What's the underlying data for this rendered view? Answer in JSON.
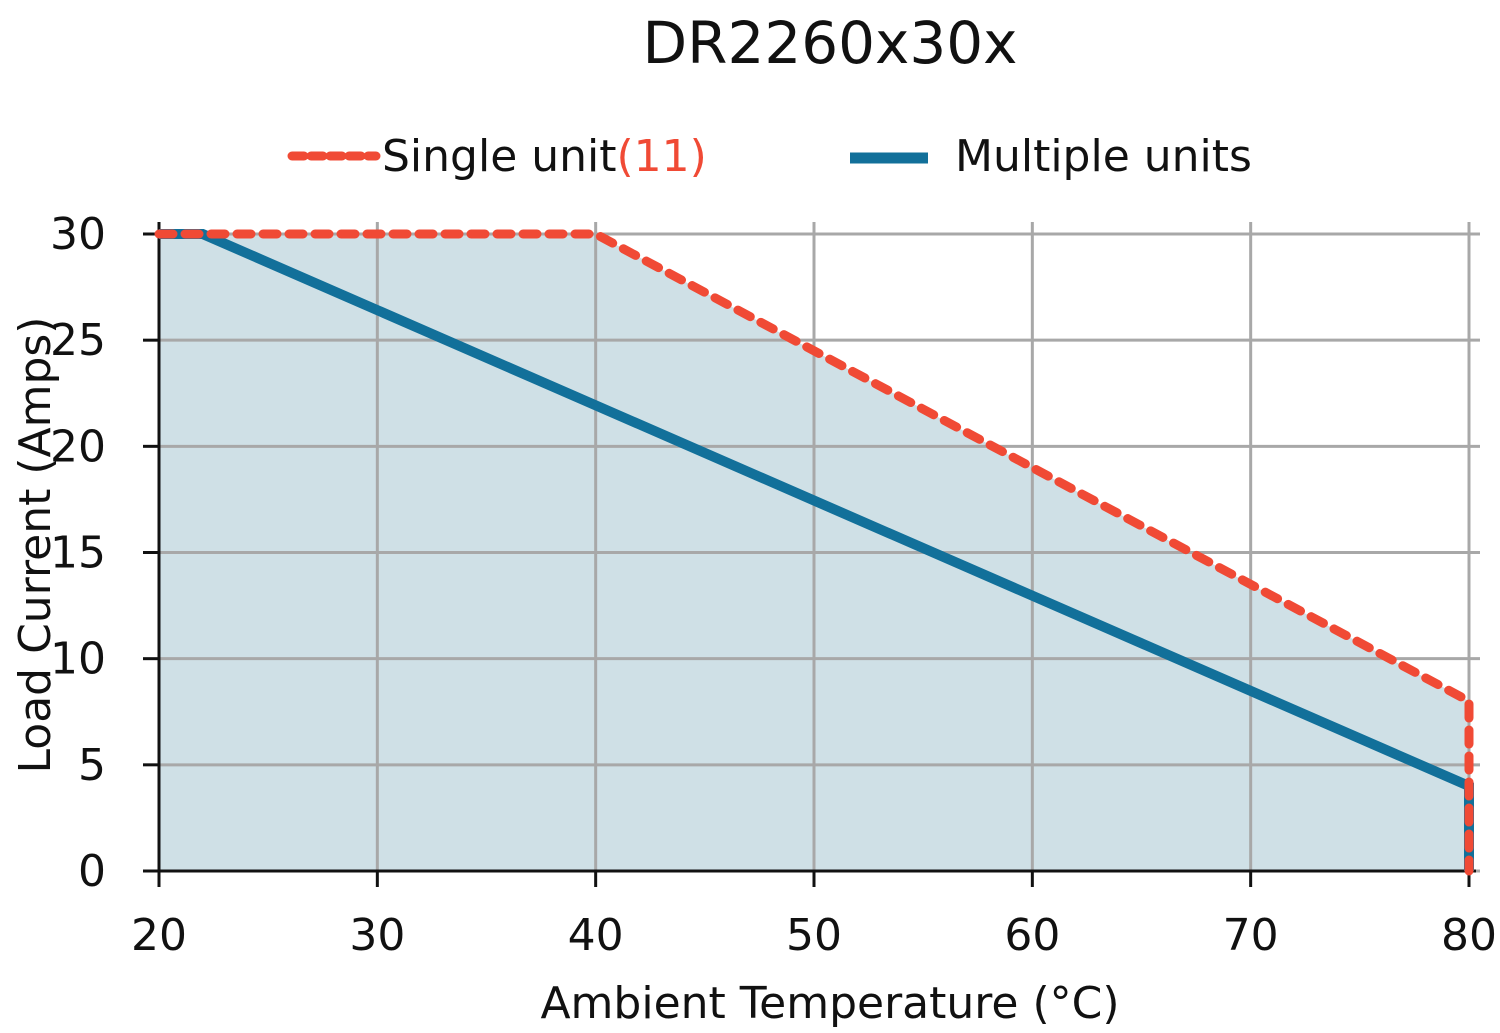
{
  "chart_data": {
    "type": "line",
    "title": "DR2260x30x",
    "xlabel": "Ambient Temperature (°C)",
    "ylabel": "Load Current (Amps)",
    "xlim": [
      20,
      80
    ],
    "ylim": [
      0,
      30
    ],
    "xticks": [
      20,
      30,
      40,
      50,
      60,
      70,
      80
    ],
    "yticks": [
      0,
      5,
      10,
      15,
      20,
      25,
      30
    ],
    "grid": true,
    "legend_position": "top",
    "fill_under": "Single unit",
    "fill_color": "#cfe0e6",
    "series": [
      {
        "name": "Single unit",
        "name_suffix": "(11)",
        "style": "dashed",
        "color": "#f04a35",
        "x": [
          20,
          40,
          80,
          80
        ],
        "y": [
          30,
          30,
          8,
          0
        ]
      },
      {
        "name": "Multiple units",
        "style": "solid",
        "color": "#12709a",
        "x": [
          20,
          22,
          80,
          80
        ],
        "y": [
          30,
          30,
          4,
          0
        ]
      }
    ]
  }
}
